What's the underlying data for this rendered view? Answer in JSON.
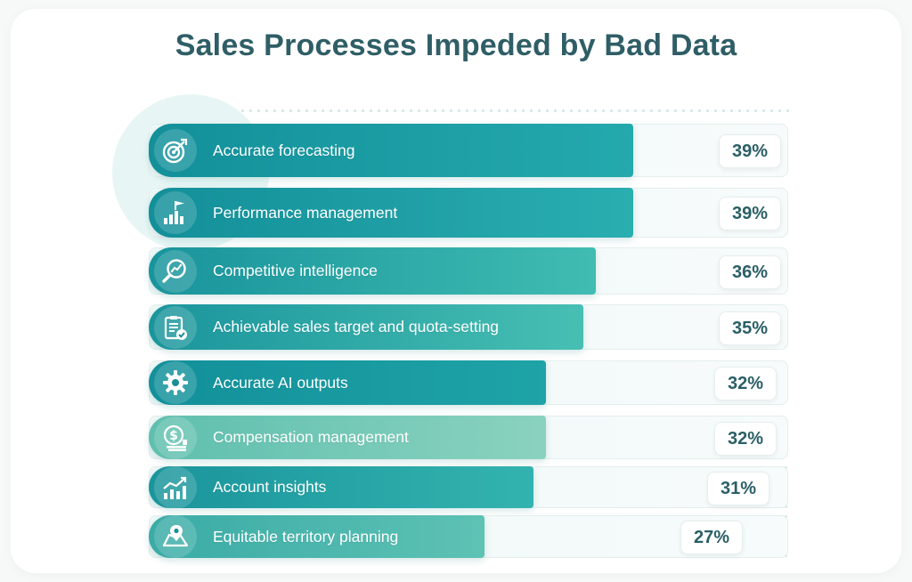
{
  "title": "Sales Processes Impeded by Bad Data",
  "colors": {
    "title": "#2f5e66",
    "bar_dark": "#13949a",
    "bar_light": "#3fb7b0",
    "bar_pale": "#76c6b8",
    "track": "#eef8f7",
    "value_text": "#2a5f66"
  },
  "chart_data": {
    "type": "bar",
    "orientation": "horizontal",
    "title": "Sales Processes Impeded by Bad Data",
    "xlabel": "",
    "ylabel": "",
    "xlim": [
      0,
      40
    ],
    "grid": false,
    "legend": "none",
    "categories": [
      "Accurate forecasting",
      "Performance management",
      "Competitive intelligence",
      "Achievable sales target and quota-setting",
      "Accurate AI outputs",
      "Compensation management",
      "Account insights",
      "Equitable territory planning"
    ],
    "values": [
      39,
      39,
      36,
      35,
      32,
      32,
      31,
      27
    ],
    "value_labels": [
      "39%",
      "39%",
      "36%",
      "35%",
      "32%",
      "32%",
      "31%",
      "27%"
    ],
    "icons": [
      "target-icon",
      "bar-chart-flag-icon",
      "magnifier-chart-icon",
      "clipboard-check-icon",
      "gear-icon",
      "money-stack-icon",
      "trend-chart-icon",
      "map-pin-icon"
    ]
  }
}
